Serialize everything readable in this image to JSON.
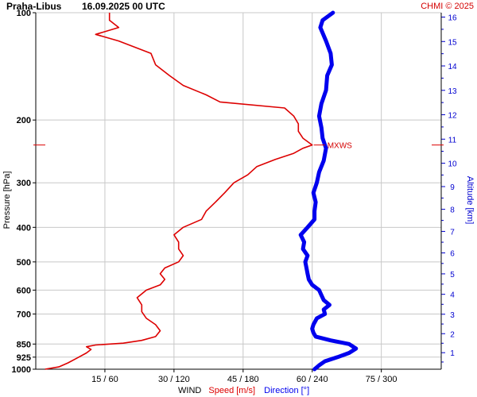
{
  "header": {
    "station": "Praha-Libus",
    "datetime": "16.09.2025 00 UTC",
    "credit": "CHMI © 2025"
  },
  "chart_data": {
    "type": "line",
    "title": "Praha-Libus 16.09.2025 00 UTC",
    "ylabel": "Pressure [hPa]",
    "y2label": "Altitude [km]",
    "xlabel_parts": {
      "prefix": "WIND",
      "speed": "Speed [m/s]",
      "direction": "Direction [°]"
    },
    "pressure_ticks": [
      100,
      200,
      300,
      400,
      500,
      600,
      700,
      850,
      925,
      1000
    ],
    "pressure_tick_labels": [
      "100",
      "200",
      "300",
      "400",
      "500",
      "600",
      "700",
      "850",
      "925",
      "1000"
    ],
    "altitude_ticks": [
      1,
      2,
      3,
      4,
      5,
      6,
      7,
      8,
      9,
      10,
      11,
      12,
      13,
      14,
      15,
      16
    ],
    "altitude_tick_labels": [
      "1",
      "2",
      "3",
      "4",
      "5",
      "6",
      "7",
      "8",
      "9",
      "10",
      "11",
      "12",
      "13",
      "14",
      "15",
      "16"
    ],
    "x_ticks": [
      15,
      30,
      45,
      60,
      75
    ],
    "x_tick_labels": [
      "15 / 60",
      "30 / 120",
      "45 / 180",
      "60 / 240",
      "75 / 300"
    ],
    "x_range_speed": [
      0,
      88
    ],
    "direction_per_speed_unit": 4,
    "annotation": {
      "label": "MXWS",
      "pressure": 235,
      "speed": 60
    },
    "colors": {
      "speed": "#dd0000",
      "direction": "#0000ee",
      "grid": "#c8c8c8",
      "axis": "#000000"
    },
    "series": [
      {
        "name": "Speed [m/s]",
        "units": "m/s",
        "points": [
          [
            1000,
            2
          ],
          [
            985,
            5
          ],
          [
            960,
            7
          ],
          [
            930,
            9
          ],
          [
            900,
            11
          ],
          [
            880,
            12
          ],
          [
            865,
            11
          ],
          [
            855,
            13
          ],
          [
            845,
            19
          ],
          [
            830,
            23
          ],
          [
            810,
            26
          ],
          [
            780,
            27
          ],
          [
            750,
            26
          ],
          [
            720,
            24
          ],
          [
            690,
            23
          ],
          [
            660,
            23
          ],
          [
            630,
            22
          ],
          [
            600,
            24
          ],
          [
            580,
            27
          ],
          [
            560,
            28
          ],
          [
            540,
            27
          ],
          [
            520,
            28
          ],
          [
            500,
            31
          ],
          [
            480,
            32
          ],
          [
            460,
            31
          ],
          [
            440,
            31
          ],
          [
            420,
            30
          ],
          [
            400,
            32
          ],
          [
            380,
            36
          ],
          [
            360,
            37
          ],
          [
            340,
            39
          ],
          [
            320,
            41
          ],
          [
            300,
            43
          ],
          [
            285,
            46
          ],
          [
            270,
            48
          ],
          [
            258,
            52
          ],
          [
            248,
            56
          ],
          [
            240,
            58
          ],
          [
            235,
            60
          ],
          [
            225,
            58
          ],
          [
            215,
            57
          ],
          [
            205,
            57
          ],
          [
            195,
            56
          ],
          [
            185,
            54
          ],
          [
            178,
            40
          ],
          [
            170,
            37
          ],
          [
            160,
            32
          ],
          [
            150,
            29
          ],
          [
            140,
            26
          ],
          [
            130,
            25
          ],
          [
            120,
            18
          ],
          [
            115,
            13
          ],
          [
            110,
            18
          ],
          [
            105,
            16
          ],
          [
            100,
            16
          ]
        ]
      },
      {
        "name": "Direction [°]",
        "units": "deg",
        "points": [
          [
            1000,
            242
          ],
          [
            975,
            246
          ],
          [
            950,
            251
          ],
          [
            925,
            262
          ],
          [
            900,
            272
          ],
          [
            875,
            278
          ],
          [
            850,
            272
          ],
          [
            830,
            256
          ],
          [
            810,
            243
          ],
          [
            790,
            241
          ],
          [
            770,
            240
          ],
          [
            750,
            241
          ],
          [
            720,
            244
          ],
          [
            700,
            251
          ],
          [
            680,
            250
          ],
          [
            660,
            255
          ],
          [
            640,
            250
          ],
          [
            620,
            248
          ],
          [
            600,
            246
          ],
          [
            580,
            240
          ],
          [
            560,
            237
          ],
          [
            540,
            236
          ],
          [
            520,
            235
          ],
          [
            500,
            234
          ],
          [
            480,
            236
          ],
          [
            460,
            232
          ],
          [
            440,
            233
          ],
          [
            420,
            230
          ],
          [
            400,
            236
          ],
          [
            380,
            242
          ],
          [
            360,
            242
          ],
          [
            340,
            243
          ],
          [
            320,
            241
          ],
          [
            300,
            244
          ],
          [
            280,
            246
          ],
          [
            260,
            250
          ],
          [
            240,
            252
          ],
          [
            225,
            249
          ],
          [
            210,
            248
          ],
          [
            195,
            246
          ],
          [
            180,
            248
          ],
          [
            165,
            252
          ],
          [
            150,
            253
          ],
          [
            140,
            257
          ],
          [
            130,
            256
          ],
          [
            120,
            252
          ],
          [
            110,
            247
          ],
          [
            105,
            249
          ],
          [
            100,
            258
          ]
        ]
      }
    ]
  }
}
